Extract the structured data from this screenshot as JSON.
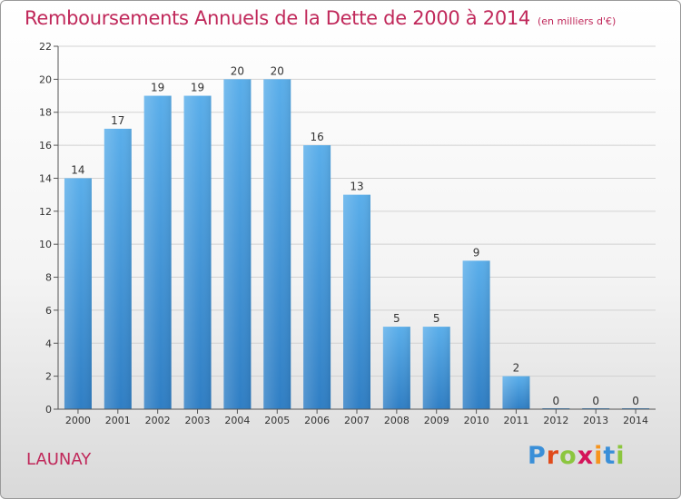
{
  "header": {
    "title": "Remboursements Annuels de la Dette de 2000 à 2014",
    "unit": "(en milliers d'€)"
  },
  "footer": {
    "place": "LAUNAY",
    "logo_letters": [
      "P",
      "r",
      "o",
      "x",
      "i",
      "t",
      "i"
    ],
    "logo_colors": [
      "#3a8fd8",
      "#e04b1b",
      "#8cc63f",
      "#d4145a",
      "#f7941d",
      "#3a8fd8",
      "#8cc63f"
    ]
  },
  "chart_data": {
    "type": "bar",
    "categories": [
      "2000",
      "2001",
      "2002",
      "2003",
      "2004",
      "2005",
      "2006",
      "2007",
      "2008",
      "2009",
      "2010",
      "2011",
      "2012",
      "2013",
      "2014"
    ],
    "values": [
      14,
      17,
      19,
      19,
      20,
      20,
      16,
      13,
      5,
      5,
      9,
      2,
      0,
      0,
      0
    ],
    "ylim": [
      0,
      22
    ],
    "yticks": [
      0,
      2,
      4,
      6,
      8,
      10,
      12,
      14,
      16,
      18,
      20,
      22
    ],
    "grid": true,
    "bar_color_top": "#5aaeea",
    "bar_color_bottom": "#2f7ec4"
  }
}
